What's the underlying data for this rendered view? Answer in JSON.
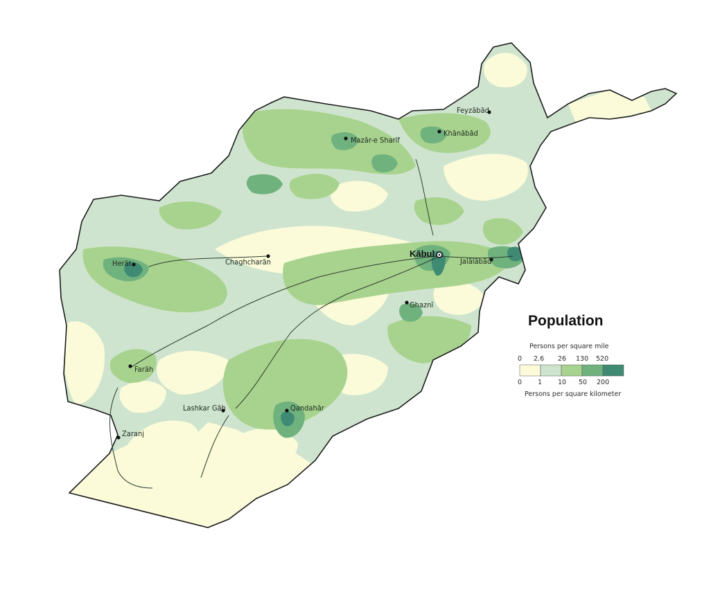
{
  "colors": {
    "class_1": "#fbfbd9",
    "class_2": "#cfe4cf",
    "class_3": "#a8d38e",
    "class_4": "#70b27e",
    "class_5": "#3f8a73",
    "border": "#1a1a1a",
    "road": "#2d3a2d"
  },
  "legend": {
    "title": "Population",
    "top_label": "Persons per square mile",
    "top_ticks": [
      "0",
      "2.6",
      "26",
      "130",
      "520"
    ],
    "bottom_ticks": [
      "0",
      "1",
      "10",
      "50",
      "200"
    ],
    "bottom_label": "Persons per square kilometer"
  },
  "cities": [
    {
      "name": "Feyzābād",
      "icon": "city-dot"
    },
    {
      "name": "Khānābād",
      "icon": "city-dot"
    },
    {
      "name": "Mazār-e Sharīf",
      "icon": "city-dot"
    },
    {
      "name": "Herāt",
      "icon": "city-dot"
    },
    {
      "name": "Chaghcharān",
      "icon": "city-dot"
    },
    {
      "name": "Kābul",
      "icon": "capital-symbol"
    },
    {
      "name": "Jalālābād",
      "icon": "city-dot"
    },
    {
      "name": "Ghaznī",
      "icon": "city-dot"
    },
    {
      "name": "Farāh",
      "icon": "city-dot"
    },
    {
      "name": "Lashkar Gāh",
      "icon": "city-dot"
    },
    {
      "name": "Qandahār",
      "icon": "city-dot"
    },
    {
      "name": "Zaranj",
      "icon": "city-dot"
    }
  ]
}
